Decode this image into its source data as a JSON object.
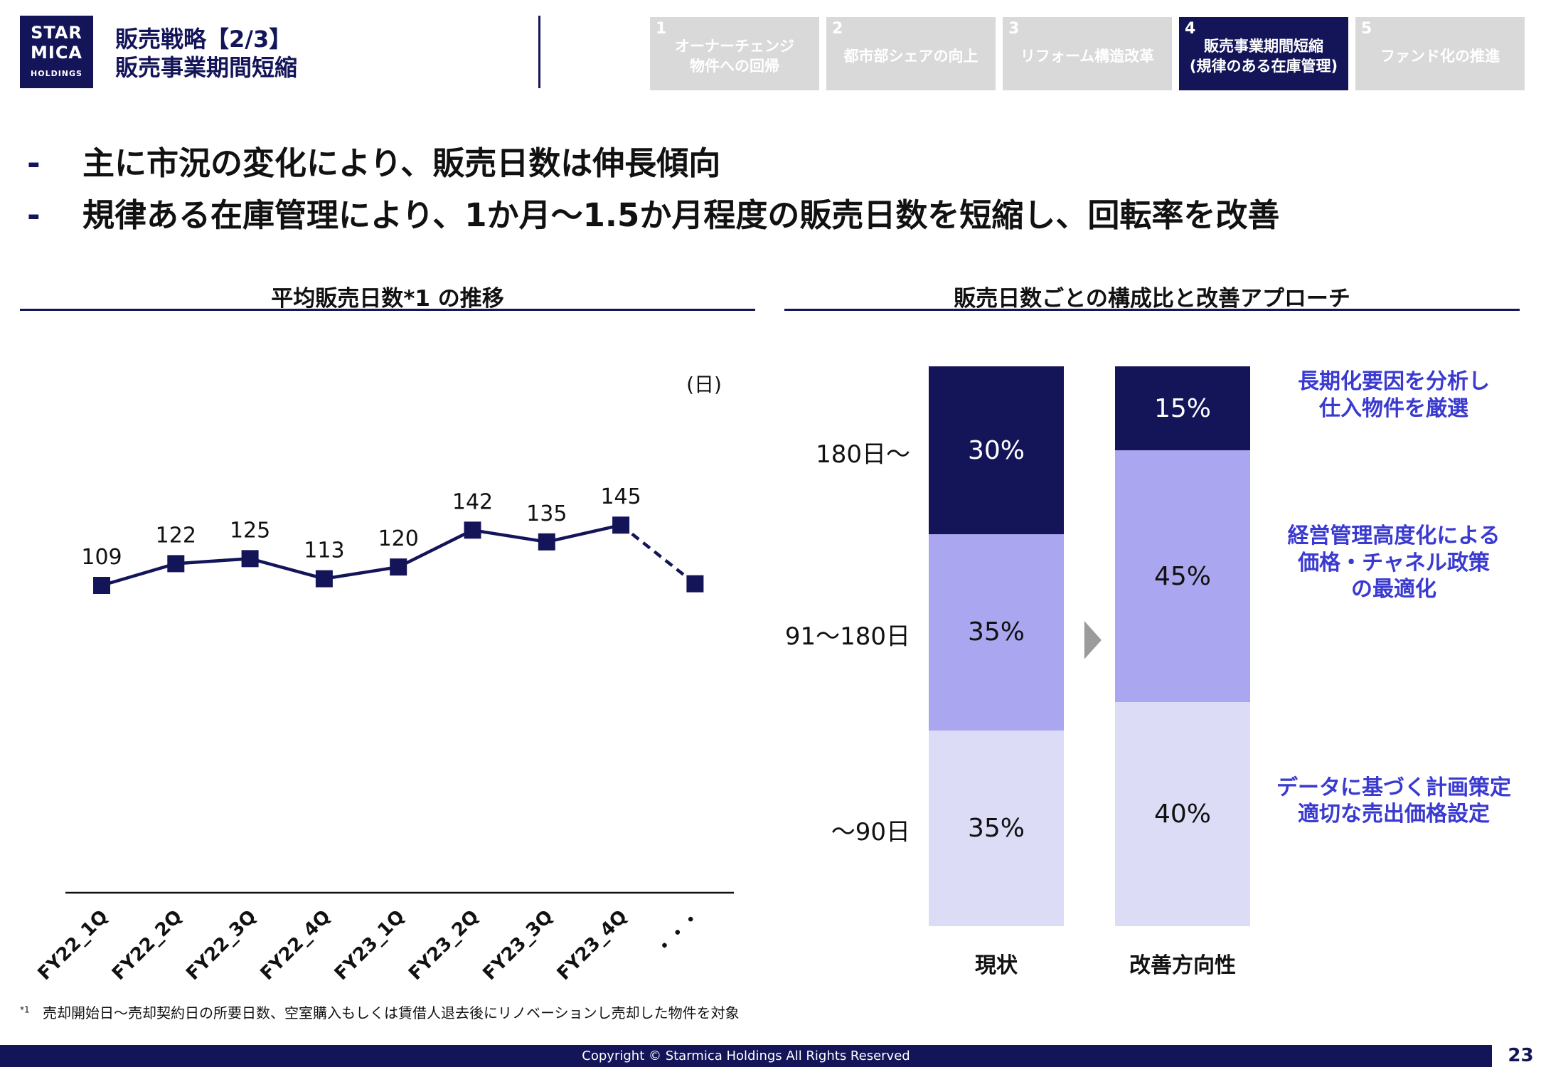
{
  "logo": {
    "line1": "STAR",
    "line2": "MICA",
    "line3": "HOLDINGS"
  },
  "header": {
    "title_line1": "販売戦略【2/3】",
    "title_line2": "販売事業期間短縮"
  },
  "tabs": [
    {
      "num": "1",
      "line1": "オーナーチェンジ",
      "line2": "物件への回帰",
      "active": false
    },
    {
      "num": "2",
      "line1": "都市部シェアの向上",
      "line2": "",
      "active": false
    },
    {
      "num": "3",
      "line1": "リフォーム構造改革",
      "line2": "",
      "active": false
    },
    {
      "num": "4",
      "line1": "販売事業期間短縮",
      "line2": "(規律のある在庫管理)",
      "active": true
    },
    {
      "num": "5",
      "line1": "ファンド化の推進",
      "line2": "",
      "active": false
    }
  ],
  "bullets": [
    "主に市況の変化により、販売日数は伸長傾向",
    "規律ある在庫管理により、1か月〜1.5か月程度の販売日数を短縮し、回転率を改善"
  ],
  "bullet_dash": "-",
  "left_section": {
    "title": "平均販売日数*1 の推移"
  },
  "right_section": {
    "title": "販売日数ごとの構成比と改善アプローチ"
  },
  "chart_data": [
    {
      "type": "line",
      "title": "平均販売日数*1 の推移",
      "unit_label": "(日)",
      "categories": [
        "FY22_1Q",
        "FY22_2Q",
        "FY22_3Q",
        "FY22_4Q",
        "FY23_1Q",
        "FY23_2Q",
        "FY23_3Q",
        "FY23_4Q",
        "・・・"
      ],
      "series": [
        {
          "values": [
            109,
            122,
            125,
            113,
            120,
            142,
            135,
            145,
            null
          ]
        }
      ],
      "projection": {
        "from_index": 7,
        "to_index": 8,
        "value": 110,
        "style": "dashed",
        "labeled": false
      },
      "ylim": [
        40,
        170
      ],
      "color": "#141559"
    },
    {
      "type": "bar",
      "stacked": true,
      "title": "販売日数ごとの構成比と改善アプローチ",
      "categories": [
        "現状",
        "改善方向性"
      ],
      "segments": [
        {
          "label": "180日〜",
          "color": "#141559",
          "text_color": "#ffffff"
        },
        {
          "label": "91〜180日",
          "color": "#aaa6ef",
          "text_color": "#111111"
        },
        {
          "label": "〜90日",
          "color": "#dcdcf7",
          "text_color": "#111111"
        }
      ],
      "values": [
        [
          30,
          35,
          35
        ],
        [
          15,
          45,
          40
        ]
      ],
      "value_labels": [
        [
          "30%",
          "35%",
          "35%"
        ],
        [
          "15%",
          "45%",
          "40%"
        ]
      ],
      "approaches": [
        "長期化要因を分析し\n仕入物件を厳選",
        "経営管理高度化による\n価格・チャネル政策\nの最適化",
        "データに基づく計画策定\n適切な売出価格設定"
      ],
      "arrow": "▶"
    }
  ],
  "footnote": {
    "mark": "*1",
    "text": "売却開始日〜売却契約日の所要日数、空室購入もしくは賃借人退去後にリノベーションし売却した物件を対象"
  },
  "footer": {
    "copyright": "Copyright ©   Starmica Holdings All Rights Reserved",
    "page": "23"
  },
  "colors": {
    "navy": "#141559",
    "mid": "#aaa6ef",
    "light": "#dcdcf7",
    "accent_text": "#3a3ad0",
    "tab_gray": "#d9d9d9"
  }
}
